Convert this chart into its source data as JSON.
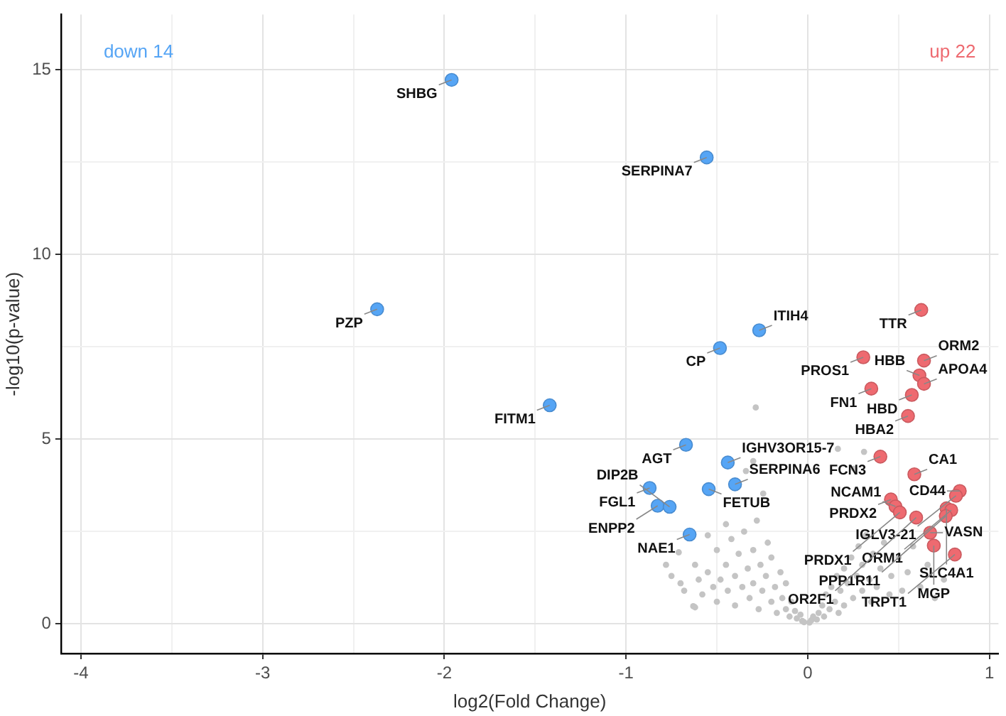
{
  "chart_data": {
    "type": "scatter",
    "xlabel": "log2(Fold Change)",
    "ylabel": "-log10(p-value)",
    "xlim": [
      -4.11,
      1.05
    ],
    "ylim": [
      -0.8,
      16.5
    ],
    "xticks": [
      -4,
      {
        "value": -3.5,
        "label": null
      },
      -3,
      {
        "value": -2.5,
        "label": null
      },
      -2,
      {
        "value": -1.5,
        "label": null
      },
      -1,
      {
        "value": -0.5,
        "label": null
      },
      0,
      {
        "value": 0.5,
        "label": null
      },
      1
    ],
    "yticks": [
      0,
      {
        "value": 2.5,
        "label": null
      },
      5,
      {
        "value": 7.5,
        "label": null
      },
      10,
      {
        "value": 12.5,
        "label": null
      },
      15
    ],
    "grid": true,
    "legend": false,
    "marker": "circle",
    "series": [
      {
        "name": "down 14",
        "color": "#56a5f5",
        "x": [
          -1.96,
          -0.556,
          -2.37,
          -0.267,
          -0.483,
          -1.42,
          -0.67,
          -0.44,
          -0.4,
          -0.545,
          -0.87,
          -0.826,
          -0.76,
          -0.65
        ],
        "values": [
          14.73,
          12.63,
          8.52,
          7.95,
          7.47,
          5.92,
          4.85,
          4.37,
          3.78,
          3.65,
          3.68,
          3.2,
          3.17,
          2.42
        ]
      },
      {
        "name": "up 22",
        "color": "#ee6a70",
        "x": [
          0.625,
          0.306,
          0.64,
          0.615,
          0.64,
          0.35,
          0.573,
          0.552,
          0.4,
          0.587,
          0.837,
          0.816,
          0.458,
          0.483,
          0.507,
          0.764,
          0.79,
          0.76,
          0.597,
          0.674,
          0.694,
          0.81
        ],
        "values": [
          8.5,
          7.22,
          7.13,
          6.73,
          6.5,
          6.37,
          6.2,
          5.63,
          4.53,
          4.05,
          3.6,
          3.47,
          3.37,
          3.18,
          3.02,
          3.13,
          3.08,
          2.92,
          2.88,
          2.47,
          2.12,
          1.88
        ]
      },
      {
        "color": "#c4c4c4",
        "x": [
          -0.286,
          0.166,
          -0.3,
          0.31,
          0.256,
          -0.34,
          -0.245,
          -0.71,
          -0.78,
          -0.63,
          -0.75,
          -0.7,
          -0.68,
          -0.62,
          -0.6,
          -0.58,
          -0.55,
          -0.52,
          -0.5,
          -0.5,
          -0.48,
          -0.45,
          -0.44,
          -0.42,
          -0.4,
          -0.4,
          -0.38,
          -0.36,
          -0.35,
          -0.33,
          -0.32,
          -0.3,
          -0.3,
          -0.28,
          -0.27,
          -0.26,
          -0.25,
          -0.23,
          -0.22,
          -0.2,
          -0.2,
          -0.18,
          -0.17,
          -0.15,
          -0.14,
          -0.12,
          -0.12,
          -0.1,
          -0.09,
          -0.07,
          -0.06,
          -0.04,
          -0.03,
          -0.02,
          -0.55,
          -0.45,
          -0.62,
          0.01,
          0.02,
          0.03,
          0.05,
          0.06,
          0.08,
          0.09,
          0.1,
          0.12,
          0.13,
          0.15,
          0.16,
          0.17,
          0.18,
          0.2,
          0.2,
          0.22,
          0.24,
          0.25,
          0.27,
          0.28,
          0.3,
          0.3,
          0.32,
          0.34,
          0.35,
          0.36,
          0.38,
          0.4,
          0.42,
          0.45,
          0.46,
          0.5,
          0.52,
          0.55,
          0.58,
          0.62,
          0.66,
          0.7,
          0.75
        ],
        "values": [
          5.86,
          4.74,
          4.41,
          4.66,
          4.2,
          4.14,
          3.53,
          1.94,
          1.6,
          0.48,
          1.3,
          1.1,
          0.9,
          1.6,
          1.2,
          0.8,
          1.4,
          1.0,
          2.0,
          0.6,
          1.2,
          1.6,
          0.9,
          2.3,
          1.3,
          0.5,
          1.9,
          1.0,
          2.5,
          1.5,
          0.7,
          2.0,
          1.1,
          2.8,
          0.4,
          1.6,
          0.9,
          1.3,
          2.2,
          0.6,
          1.8,
          1.0,
          0.3,
          1.4,
          0.7,
          0.4,
          1.1,
          0.2,
          0.6,
          0.35,
          0.15,
          0.25,
          0.08,
          0.05,
          2.4,
          2.7,
          0.45,
          0.04,
          0.1,
          0.2,
          0.12,
          0.3,
          0.5,
          0.2,
          0.8,
          0.4,
          1.0,
          0.6,
          1.3,
          0.3,
          0.9,
          1.5,
          0.5,
          1.1,
          1.8,
          0.7,
          1.3,
          2.1,
          0.9,
          1.6,
          2.4,
          1.2,
          0.6,
          1.9,
          1.0,
          1.5,
          2.2,
          0.8,
          1.3,
          1.8,
          0.9,
          1.4,
          2.1,
          1.0,
          1.6,
          0.7,
          1.2
        ]
      }
    ],
    "annotations": [
      {
        "text": "SHBG",
        "x": -1.96,
        "y": 14.73
      },
      {
        "text": "SERPINA7",
        "x": -0.556,
        "y": 12.63
      },
      {
        "text": "PZP",
        "x": -2.37,
        "y": 8.52
      },
      {
        "text": "ITIH4",
        "x": -0.267,
        "y": 7.95
      },
      {
        "text": "CP",
        "x": -0.483,
        "y": 7.47
      },
      {
        "text": "FITM1",
        "x": -1.42,
        "y": 5.92
      },
      {
        "text": "AGT",
        "x": -0.67,
        "y": 4.85
      },
      {
        "text": "IGHV3OR15-7",
        "x": -0.44,
        "y": 4.37
      },
      {
        "text": "SERPINA6",
        "x": -0.4,
        "y": 3.78
      },
      {
        "text": "FETUB",
        "x": -0.545,
        "y": 3.65
      },
      {
        "text": "FGL1",
        "x": -0.87,
        "y": 3.68
      },
      {
        "text": "ENPP2",
        "x": -0.826,
        "y": 3.2
      },
      {
        "text": "DIP2B",
        "x": -0.76,
        "y": 3.17
      },
      {
        "text": "NAE1",
        "x": -0.65,
        "y": 2.42
      },
      {
        "text": "TTR",
        "x": 0.625,
        "y": 8.5
      },
      {
        "text": "PROS1",
        "x": 0.306,
        "y": 7.22
      },
      {
        "text": "ORM2",
        "x": 0.64,
        "y": 7.13
      },
      {
        "text": "HBB",
        "x": 0.615,
        "y": 6.73
      },
      {
        "text": "APOA4",
        "x": 0.64,
        "y": 6.5
      },
      {
        "text": "FN1",
        "x": 0.35,
        "y": 6.37
      },
      {
        "text": "HBD",
        "x": 0.573,
        "y": 6.2
      },
      {
        "text": "HBA2",
        "x": 0.552,
        "y": 5.63
      },
      {
        "text": "FCN3",
        "x": 0.4,
        "y": 4.53
      },
      {
        "text": "CA1",
        "x": 0.587,
        "y": 4.05
      },
      {
        "text": "CD44",
        "x": 0.837,
        "y": 3.6
      },
      {
        "text": "IGLV3-21",
        "x": 0.816,
        "y": 3.47
      },
      {
        "text": "PRDX2",
        "x": 0.458,
        "y": 3.37
      },
      {
        "text": "NCAM1",
        "x": 0.483,
        "y": 3.18
      },
      {
        "text": "PRDX1",
        "x": 0.507,
        "y": 3.02
      },
      {
        "text": "SLC4A1",
        "x": 0.764,
        "y": 3.13
      },
      {
        "text": "ORM1",
        "x": 0.79,
        "y": 3.08
      },
      {
        "text": "PPP1R11",
        "x": 0.76,
        "y": 2.92
      },
      {
        "text": "OR2F1",
        "x": 0.597,
        "y": 2.88
      },
      {
        "text": "VASN",
        "x": 0.674,
        "y": 2.47
      },
      {
        "text": "MGP",
        "x": 0.694,
        "y": 2.12
      },
      {
        "text": "TRPT1",
        "x": 0.81,
        "y": 1.88
      }
    ]
  }
}
